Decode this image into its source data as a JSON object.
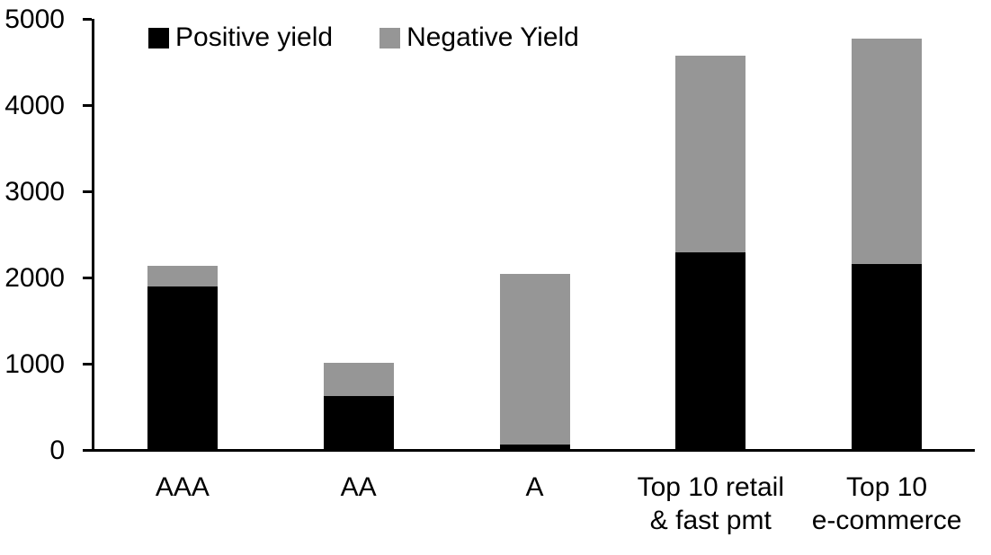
{
  "chart_data": {
    "type": "bar",
    "stacked": true,
    "title": "",
    "xlabel": "",
    "ylabel": "",
    "categories": [
      "AAA",
      "AA",
      "A",
      "Top 10 retail\n& fast pmt",
      "Top 10\ne-commerce"
    ],
    "series": [
      {
        "name": "Positive yield",
        "color": "#000000",
        "values": [
          1890,
          615,
          55,
          2285,
          2155
        ]
      },
      {
        "name": "Negative Yield",
        "color": "#969696",
        "values": [
          240,
          385,
          1985,
          2285,
          2615
        ]
      }
    ],
    "totals": [
      2130,
      1000,
      2040,
      4570,
      4770
    ],
    "ylim": [
      0,
      5000
    ],
    "yticks": [
      0,
      1000,
      2000,
      3000,
      4000,
      5000
    ],
    "grid": false,
    "legend_position": "top-left"
  },
  "colors": {
    "axis": "#000000",
    "background": "#ffffff",
    "positive": "#000000",
    "negative": "#969696"
  }
}
